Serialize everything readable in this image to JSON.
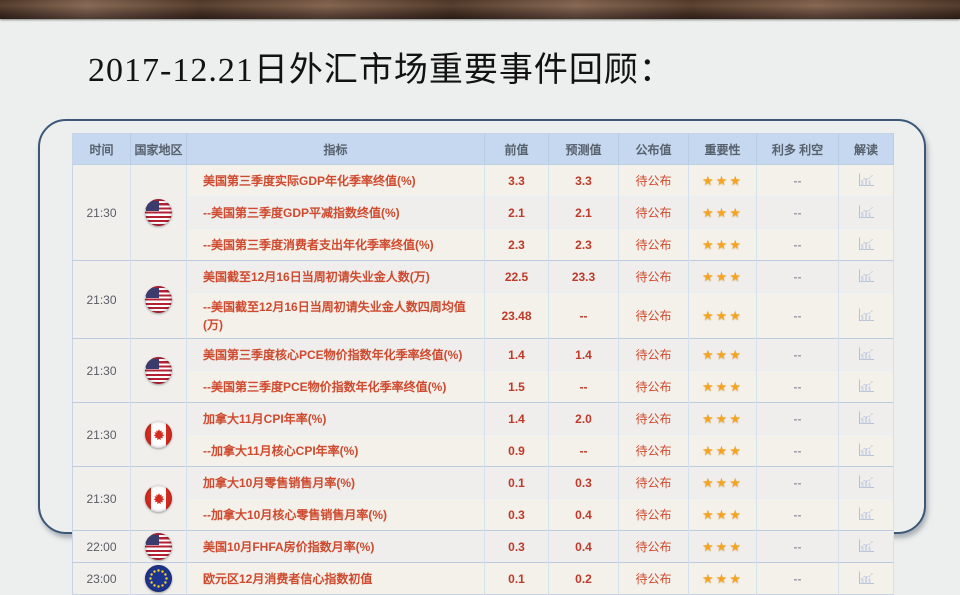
{
  "title": "2017-12.21日外汇市场重要事件回顾：",
  "colors": {
    "accent_red": "#cf4a2e",
    "number_red": "#bf3a28",
    "header_bg": "#c5d8ef",
    "star_gold": "#f6a41f",
    "frame_border": "#3b5878"
  },
  "table": {
    "headers": [
      "时间",
      "国家地区",
      "指标",
      "前值",
      "预测值",
      "公布值",
      "重要性",
      "利多 利空",
      "解读"
    ],
    "pending_label": "待公布",
    "bias_placeholder": "--",
    "importance_stars": 3,
    "groups": [
      {
        "time": "21:30",
        "flag": "us",
        "rows": [
          {
            "indicator": "美国第三季度实际GDP年化季率终值(%)",
            "prev": "3.3",
            "forecast": "3.3"
          },
          {
            "indicator": "--美国第三季度GDP平减指数终值(%)",
            "prev": "2.1",
            "forecast": "2.1"
          },
          {
            "indicator": "--美国第三季度消费者支出年化季率终值(%)",
            "prev": "2.3",
            "forecast": "2.3"
          }
        ]
      },
      {
        "time": "21:30",
        "flag": "us",
        "rows": [
          {
            "indicator": "美国截至12月16日当周初请失业金人数(万)",
            "prev": "22.5",
            "forecast": "23.3"
          },
          {
            "indicator": "--美国截至12月16日当周初请失业金人数四周均值(万)",
            "prev": "23.48",
            "forecast": "--",
            "tall": true
          }
        ]
      },
      {
        "time": "21:30",
        "flag": "us",
        "rows": [
          {
            "indicator": "美国第三季度核心PCE物价指数年化季率终值(%)",
            "prev": "1.4",
            "forecast": "1.4"
          },
          {
            "indicator": "--美国第三季度PCE物价指数年化季率终值(%)",
            "prev": "1.5",
            "forecast": "--"
          }
        ]
      },
      {
        "time": "21:30",
        "flag": "ca",
        "rows": [
          {
            "indicator": "加拿大11月CPI年率(%)",
            "prev": "1.4",
            "forecast": "2.0"
          },
          {
            "indicator": "--加拿大11月核心CPI年率(%)",
            "prev": "0.9",
            "forecast": "--"
          }
        ]
      },
      {
        "time": "21:30",
        "flag": "ca",
        "rows": [
          {
            "indicator": "加拿大10月零售销售月率(%)",
            "prev": "0.1",
            "forecast": "0.3"
          },
          {
            "indicator": "--加拿大10月核心零售销售月率(%)",
            "prev": "0.3",
            "forecast": "0.4"
          }
        ]
      },
      {
        "time": "22:00",
        "flag": "us",
        "rows": [
          {
            "indicator": "美国10月FHFA房价指数月率(%)",
            "prev": "0.3",
            "forecast": "0.4"
          }
        ]
      },
      {
        "time": "23:00",
        "flag": "eu",
        "rows": [
          {
            "indicator": "欧元区12月消费者信心指数初值",
            "prev": "0.1",
            "forecast": "0.2"
          }
        ]
      }
    ]
  }
}
